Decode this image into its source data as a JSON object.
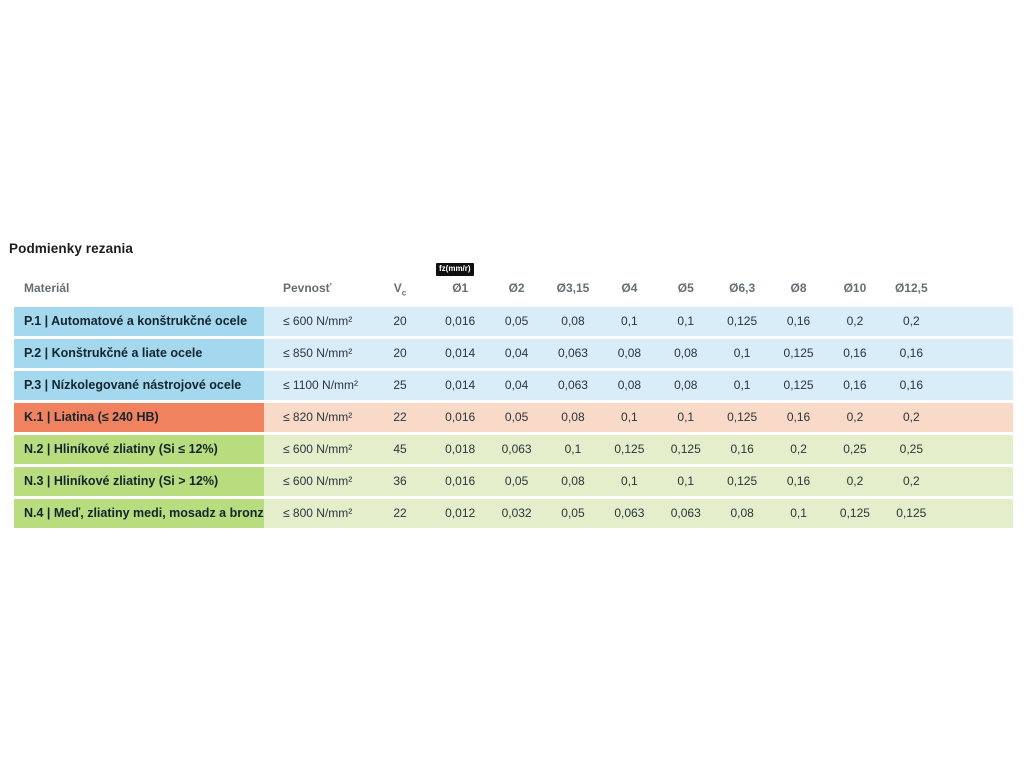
{
  "page": {
    "title": "Podmienky rezania"
  },
  "table": {
    "headers": {
      "material": "Materiál",
      "pevnost": "Pevnosť",
      "vc_main": "V",
      "vc_sub": "c"
    },
    "fz_badge": "fz(mm/r)",
    "diameter_headers": [
      "Ø1",
      "Ø2",
      "Ø3,15",
      "Ø4",
      "Ø5",
      "Ø6,3",
      "Ø8",
      "Ø10",
      "Ø12,5"
    ],
    "colors": {
      "blue": {
        "label": "#a4d8ef",
        "row": "#d9edf8"
      },
      "red": {
        "label": "#f0825f",
        "row": "#f9d9c8"
      },
      "green": {
        "label": "#b8dc7e",
        "row": "#e4eecb"
      }
    },
    "rows": [
      {
        "label": "P.1 | Automatové a konštrukčné ocele",
        "pevnost": "≤ 600 N/mm²",
        "vc": "20",
        "scheme": "blue",
        "values": [
          "0,016",
          "0,05",
          "0,08",
          "0,1",
          "0,1",
          "0,125",
          "0,16",
          "0,2",
          "0,2"
        ]
      },
      {
        "label": "P.2 | Konštrukčné a liate ocele",
        "pevnost": "≤ 850 N/mm²",
        "vc": "20",
        "scheme": "blue",
        "values": [
          "0,014",
          "0,04",
          "0,063",
          "0,08",
          "0,08",
          "0,1",
          "0,125",
          "0,16",
          "0,16"
        ]
      },
      {
        "label": "P.3 | Nízkolegované nástrojové ocele",
        "pevnost": "≤ 1100 N/mm²",
        "vc": "25",
        "scheme": "blue",
        "values": [
          "0,014",
          "0,04",
          "0,063",
          "0,08",
          "0,08",
          "0,1",
          "0,125",
          "0,16",
          "0,16"
        ]
      },
      {
        "label": "K.1 | Liatina (≤ 240 HB)",
        "pevnost": "≤ 820 N/mm²",
        "vc": "22",
        "scheme": "red",
        "values": [
          "0,016",
          "0,05",
          "0,08",
          "0,1",
          "0,1",
          "0,125",
          "0,16",
          "0,2",
          "0,2"
        ]
      },
      {
        "label": "N.2 | Hliníkové zliatiny (Si ≤ 12%)",
        "pevnost": "≤ 600 N/mm²",
        "vc": "45",
        "scheme": "green",
        "values": [
          "0,018",
          "0,063",
          "0,1",
          "0,125",
          "0,125",
          "0,16",
          "0,2",
          "0,25",
          "0,25"
        ]
      },
      {
        "label": "N.3 | Hliníkové zliatiny (Si > 12%)",
        "pevnost": "≤ 600 N/mm²",
        "vc": "36",
        "scheme": "green",
        "values": [
          "0,016",
          "0,05",
          "0,08",
          "0,1",
          "0,1",
          "0,125",
          "0,16",
          "0,2",
          "0,2"
        ]
      },
      {
        "label": "N.4 | Meď, zliatiny medi, mosadz a bronz",
        "pevnost": "≤ 800 N/mm²",
        "vc": "22",
        "scheme": "green",
        "values": [
          "0,012",
          "0,032",
          "0,05",
          "0,063",
          "0,063",
          "0,08",
          "0,1",
          "0,125",
          "0,125"
        ]
      }
    ]
  }
}
